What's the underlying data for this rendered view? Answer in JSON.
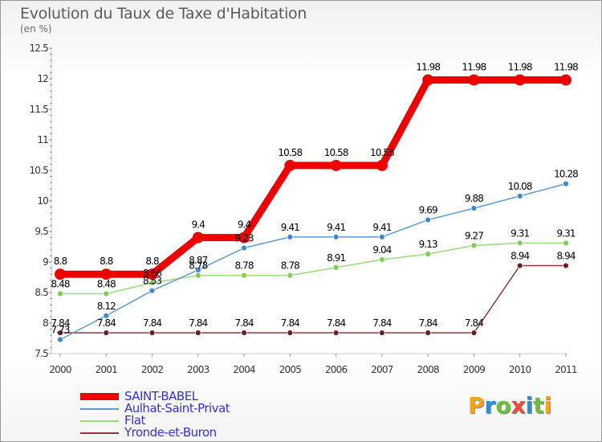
{
  "title": "Evolution du Taux de Taxe d'Habitation",
  "subtitle": "(en %)",
  "logo": {
    "letters": [
      "P",
      "r",
      "o",
      "x",
      "i",
      "t",
      "i"
    ],
    "colors": [
      "#f7a21b",
      "#2c8fd6",
      "#6cbf3a",
      "#e94b3c",
      "#2c8fd6",
      "#6cbf3a",
      "#f7a21b"
    ]
  },
  "chart_data": {
    "type": "line",
    "categories": [
      "2000",
      "2001",
      "2002",
      "2003",
      "2004",
      "2005",
      "2006",
      "2007",
      "2008",
      "2009",
      "2010",
      "2011"
    ],
    "ylim": [
      7.5,
      12.5
    ],
    "yticks": [
      "7.5",
      "8",
      "8.5",
      "9",
      "9.5",
      "10",
      "10.5",
      "11",
      "11.5",
      "12",
      "12.5"
    ],
    "grid": false,
    "legend_position": "bottom-left",
    "series": [
      {
        "name": "SAINT-BABEL",
        "color": "#ee0000",
        "width": 9,
        "marker": 7,
        "values": [
          8.8,
          8.8,
          8.8,
          9.4,
          9.4,
          10.58,
          10.58,
          10.58,
          11.98,
          11.98,
          11.98,
          11.98
        ],
        "labels": [
          "8.8",
          "8.8",
          "8.8",
          "9.4",
          "9.4",
          "10.58",
          "10.58",
          "10.58",
          "11.98",
          "11.98",
          "11.98",
          "11.98"
        ],
        "label_color": "#000000"
      },
      {
        "name": "Aulhat-Saint-Privat",
        "color": "#5b9bd5",
        "width": 1.5,
        "marker": 3.5,
        "marker_fill": "#3f88cf",
        "values": [
          7.73,
          8.12,
          8.53,
          8.87,
          9.23,
          9.41,
          9.41,
          9.41,
          9.69,
          9.88,
          10.08,
          10.28
        ],
        "labels": [
          "7.73",
          "8.12",
          "8.53",
          "8.87",
          "9.23",
          "9.41",
          "9.41",
          "9.41",
          "9.69",
          "9.88",
          "10.08",
          "10.28"
        ],
        "label_color": "#000000"
      },
      {
        "name": "Flat",
        "color": "#99dd77",
        "width": 1.5,
        "marker": 3.5,
        "marker_fill": "#7ccc55",
        "values": [
          8.48,
          8.48,
          8.66,
          8.78,
          8.78,
          8.78,
          8.91,
          9.04,
          9.13,
          9.27,
          9.31,
          9.31
        ],
        "labels": [
          "8.48",
          "8.48",
          "8.66",
          "8.78",
          "8.78",
          "8.78",
          "8.91",
          "9.04",
          "9.13",
          "9.27",
          "9.31",
          "9.31"
        ],
        "label_color": "#000000"
      },
      {
        "name": "Yronde-et-Buron",
        "color": "#8a3a3a",
        "width": 1.5,
        "marker": 3.5,
        "marker_fill": "#6a2020",
        "values": [
          7.84,
          7.84,
          7.84,
          7.84,
          7.84,
          7.84,
          7.84,
          7.84,
          7.84,
          7.84,
          8.94,
          8.94
        ],
        "labels": [
          "7.84",
          "7.84",
          "7.84",
          "7.84",
          "7.84",
          "7.84",
          "7.84",
          "7.84",
          "7.84",
          "7.84",
          "8.94",
          "8.94"
        ],
        "label_color": "#000000"
      }
    ]
  }
}
